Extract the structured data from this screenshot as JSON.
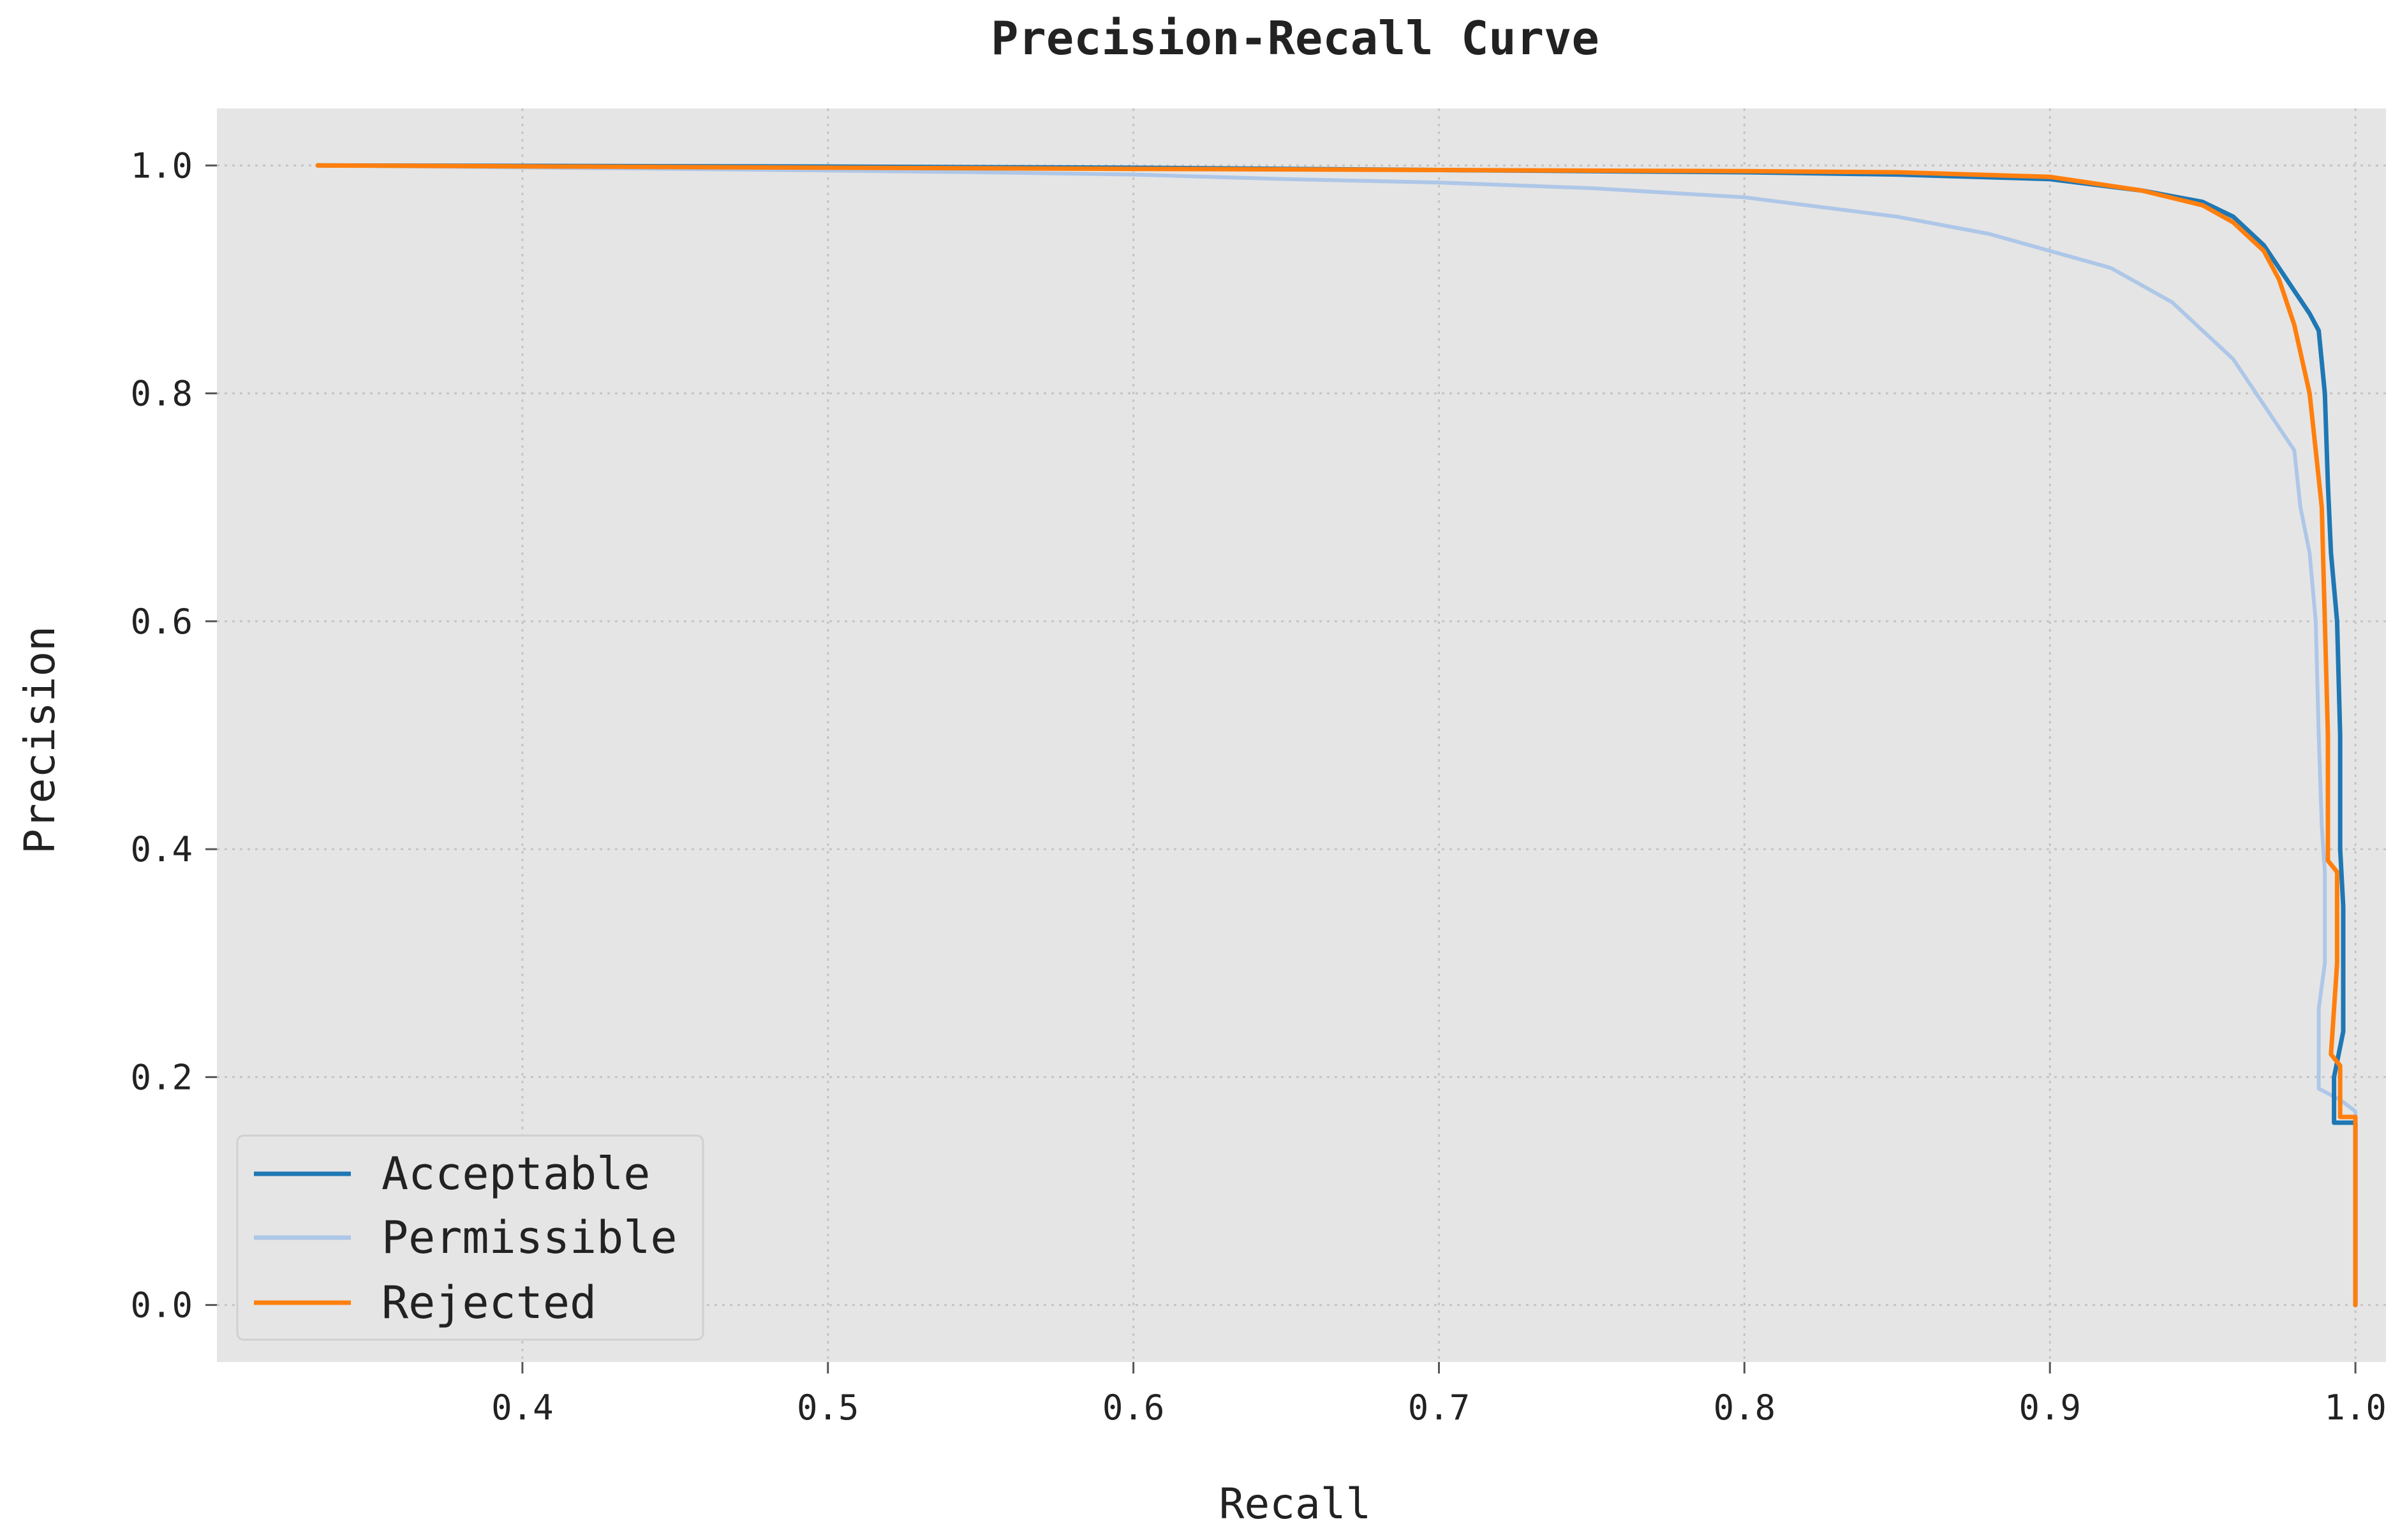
{
  "chart_data": {
    "type": "line",
    "title": "Precision-Recall Curve",
    "xlabel": "Recall",
    "ylabel": "Precision",
    "xlim": [
      0.3,
      1.01
    ],
    "ylim": [
      -0.05,
      1.05
    ],
    "x_ticks": [
      "0.4",
      "0.5",
      "0.6",
      "0.7",
      "0.8",
      "0.9",
      "1.0"
    ],
    "y_ticks": [
      "0.0",
      "0.2",
      "0.4",
      "0.6",
      "0.8",
      "1.0"
    ],
    "grid": true,
    "legend_position": "lower-left",
    "series": [
      {
        "name": "Acceptable",
        "color": "#1f77b4",
        "points": [
          [
            0.333,
            1.0
          ],
          [
            0.5,
            0.999
          ],
          [
            0.6,
            0.998
          ],
          [
            0.7,
            0.996
          ],
          [
            0.8,
            0.994
          ],
          [
            0.85,
            0.992
          ],
          [
            0.9,
            0.988
          ],
          [
            0.93,
            0.978
          ],
          [
            0.95,
            0.968
          ],
          [
            0.96,
            0.955
          ],
          [
            0.97,
            0.93
          ],
          [
            0.975,
            0.91
          ],
          [
            0.98,
            0.89
          ],
          [
            0.985,
            0.87
          ],
          [
            0.988,
            0.855
          ],
          [
            0.99,
            0.8
          ],
          [
            0.991,
            0.72
          ],
          [
            0.992,
            0.66
          ],
          [
            0.994,
            0.6
          ],
          [
            0.995,
            0.5
          ],
          [
            0.995,
            0.4
          ],
          [
            0.996,
            0.35
          ],
          [
            0.996,
            0.24
          ],
          [
            0.993,
            0.2
          ],
          [
            0.993,
            0.16
          ],
          [
            0.998,
            0.16
          ],
          [
            1.0,
            0.16
          ],
          [
            1.0,
            0.0
          ]
        ]
      },
      {
        "name": "Permissible",
        "color": "#aec7e8",
        "points": [
          [
            0.333,
            1.0
          ],
          [
            0.45,
            0.997
          ],
          [
            0.55,
            0.994
          ],
          [
            0.6,
            0.992
          ],
          [
            0.65,
            0.988
          ],
          [
            0.7,
            0.985
          ],
          [
            0.75,
            0.98
          ],
          [
            0.8,
            0.972
          ],
          [
            0.85,
            0.955
          ],
          [
            0.88,
            0.94
          ],
          [
            0.9,
            0.925
          ],
          [
            0.92,
            0.91
          ],
          [
            0.94,
            0.88
          ],
          [
            0.96,
            0.83
          ],
          [
            0.97,
            0.79
          ],
          [
            0.98,
            0.75
          ],
          [
            0.982,
            0.7
          ],
          [
            0.985,
            0.66
          ],
          [
            0.987,
            0.6
          ],
          [
            0.988,
            0.5
          ],
          [
            0.989,
            0.42
          ],
          [
            0.99,
            0.38
          ],
          [
            0.99,
            0.3
          ],
          [
            0.988,
            0.26
          ],
          [
            0.988,
            0.19
          ],
          [
            0.995,
            0.18
          ],
          [
            1.0,
            0.17
          ],
          [
            1.0,
            0.0
          ]
        ]
      },
      {
        "name": "Rejected",
        "color": "#ff7f0e",
        "points": [
          [
            0.333,
            1.0
          ],
          [
            0.5,
            0.998
          ],
          [
            0.6,
            0.997
          ],
          [
            0.7,
            0.996
          ],
          [
            0.8,
            0.995
          ],
          [
            0.85,
            0.994
          ],
          [
            0.9,
            0.99
          ],
          [
            0.93,
            0.978
          ],
          [
            0.95,
            0.965
          ],
          [
            0.96,
            0.95
          ],
          [
            0.97,
            0.925
          ],
          [
            0.975,
            0.9
          ],
          [
            0.98,
            0.86
          ],
          [
            0.985,
            0.8
          ],
          [
            0.987,
            0.75
          ],
          [
            0.989,
            0.7
          ],
          [
            0.99,
            0.6
          ],
          [
            0.991,
            0.5
          ],
          [
            0.991,
            0.39
          ],
          [
            0.994,
            0.38
          ],
          [
            0.994,
            0.3
          ],
          [
            0.992,
            0.22
          ],
          [
            0.995,
            0.21
          ],
          [
            0.995,
            0.165
          ],
          [
            1.0,
            0.165
          ],
          [
            1.0,
            0.0
          ]
        ]
      }
    ]
  }
}
